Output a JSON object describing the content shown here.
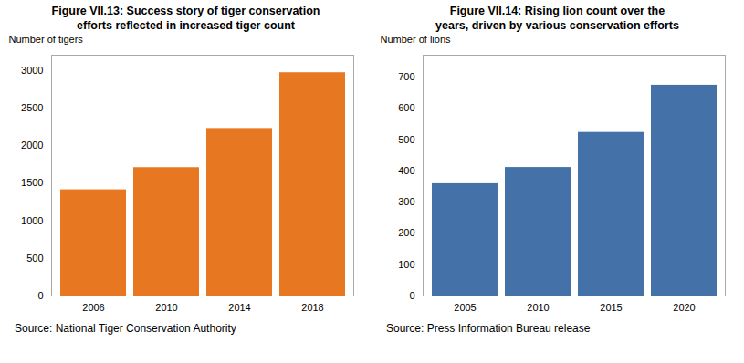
{
  "chart_data": [
    {
      "type": "bar",
      "title": "Figure VII.13: Success story of tiger conservation",
      "subtitle": "efforts reflected in increased tiger count",
      "categories": [
        "2006",
        "2010",
        "2014",
        "2018"
      ],
      "values": [
        1411,
        1706,
        2226,
        2967
      ],
      "color": "#E87722",
      "ylabel": "Number of tigers",
      "ylim": [
        0,
        3200
      ],
      "yticks": [
        0,
        500,
        1000,
        1500,
        2000,
        2500,
        3000
      ],
      "grid": false,
      "annotations": [
        "Source: National Tiger Conservation Authority"
      ]
    },
    {
      "type": "bar",
      "title": "Figure VII.14: Rising lion count over the",
      "subtitle": "years, driven by various conservation efforts",
      "categories": [
        "2005",
        "2010",
        "2015",
        "2020"
      ],
      "values": [
        359,
        411,
        523,
        674
      ],
      "color": "#4472A8",
      "ylabel": "Number of lions",
      "ylim": [
        0,
        770
      ],
      "yticks": [
        0,
        100,
        200,
        300,
        400,
        500,
        600,
        700
      ],
      "grid": false,
      "annotations": [
        "Source: Press Information Bureau release"
      ]
    }
  ]
}
